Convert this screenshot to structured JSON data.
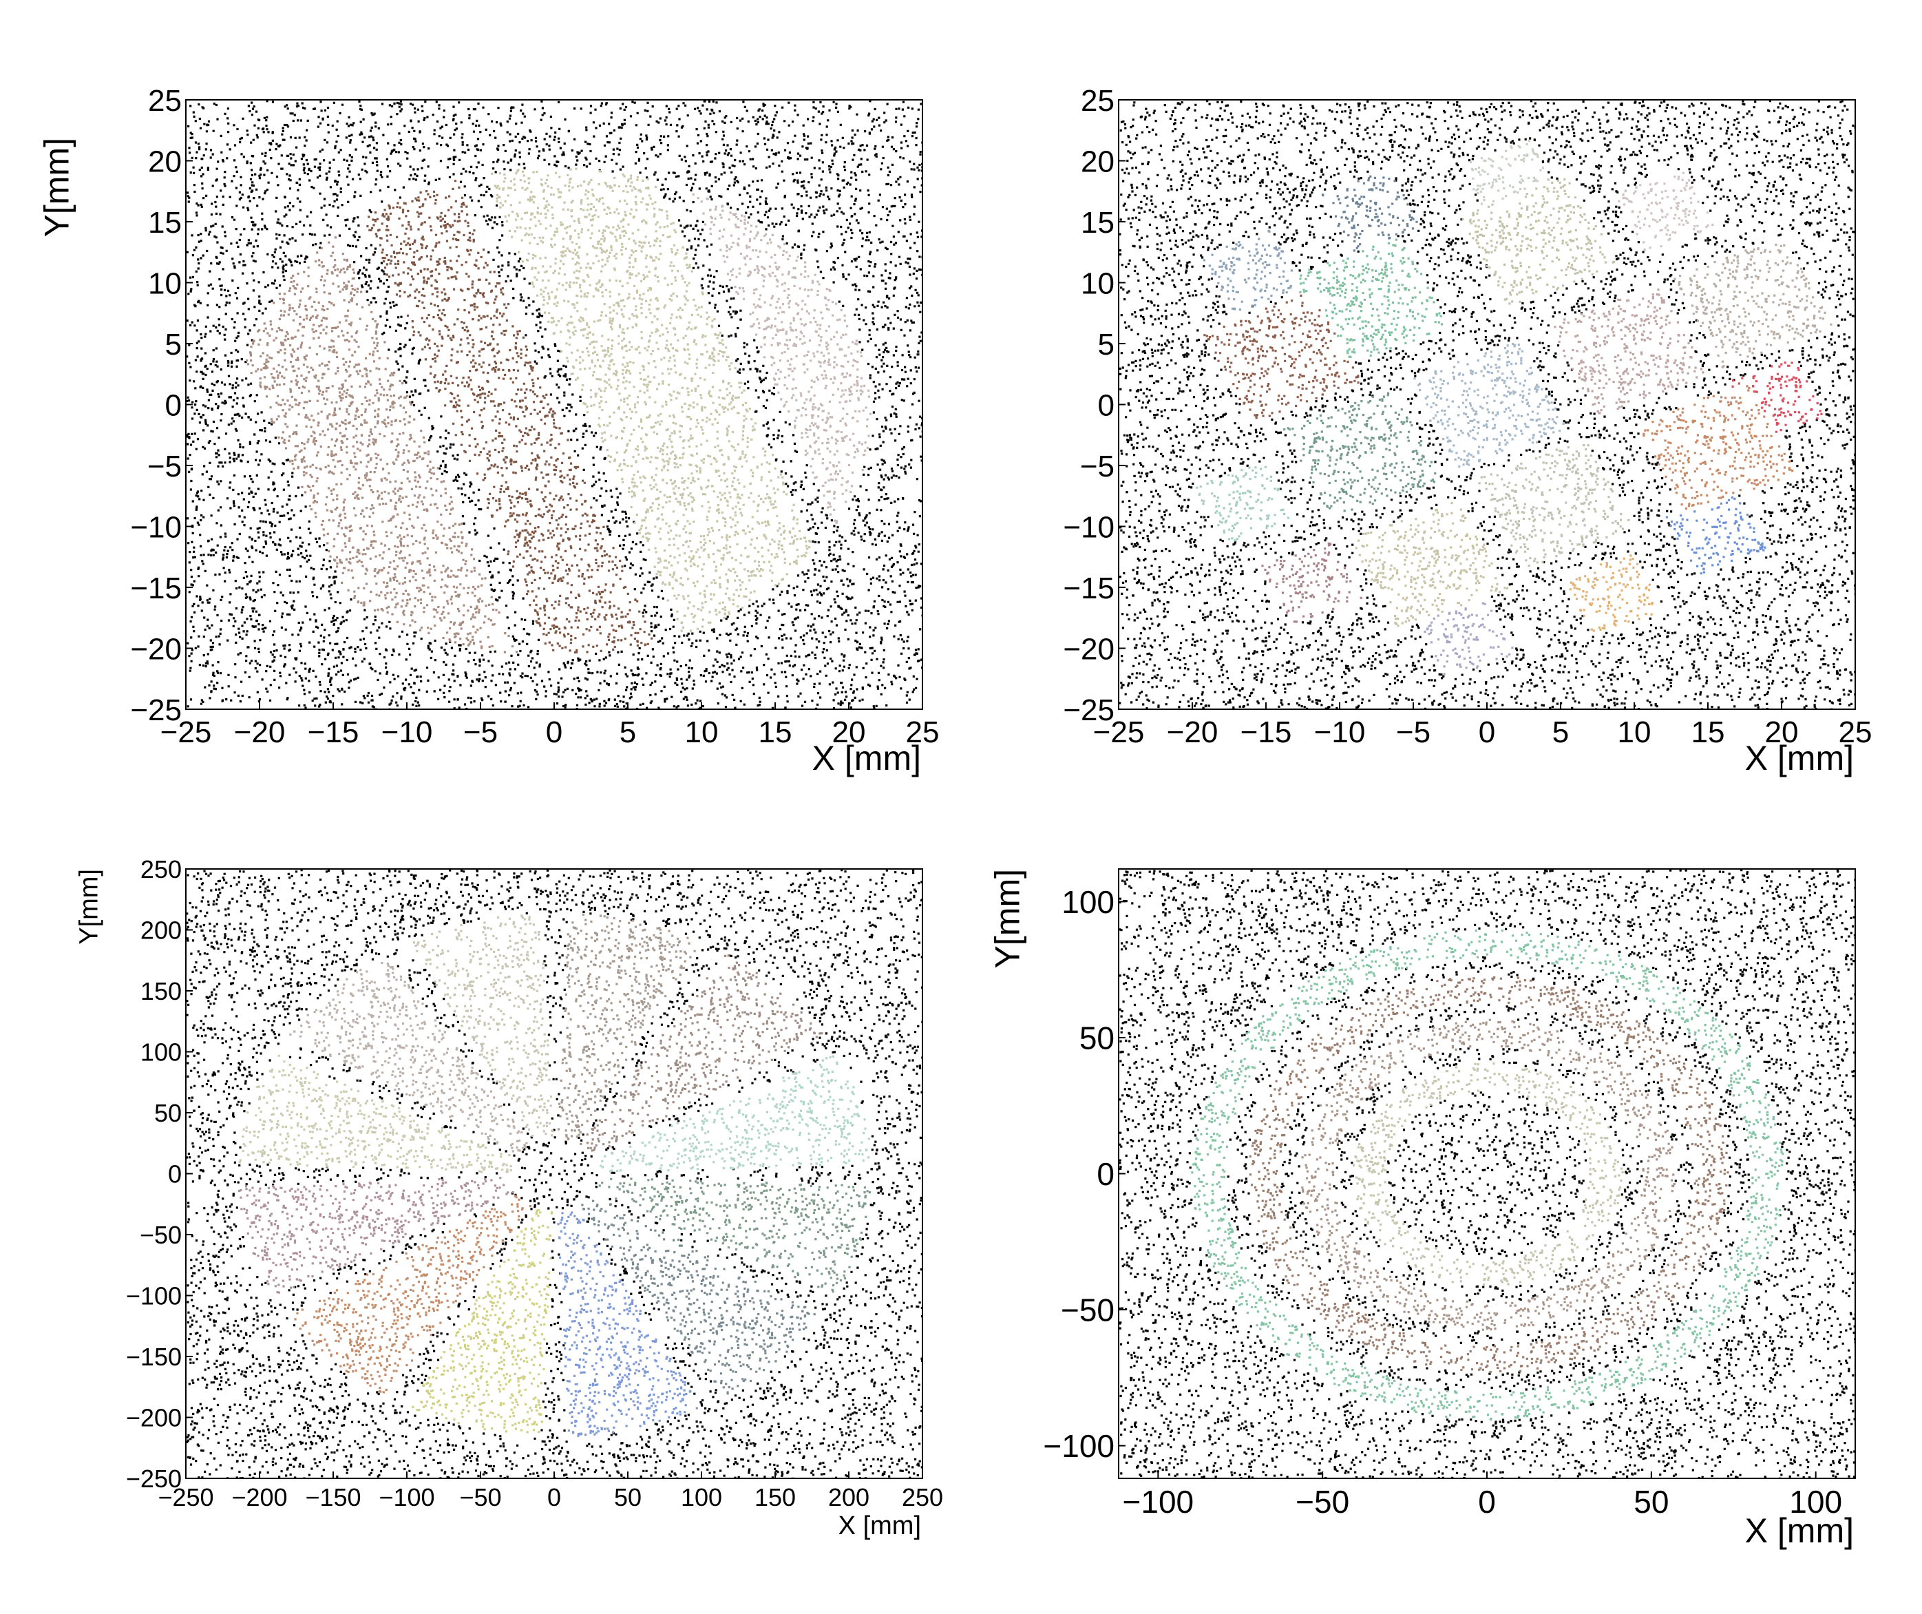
{
  "chart_data": [
    {
      "type": "scatter",
      "panel": "top-left",
      "title": "",
      "xlabel": "X [mm]",
      "ylabel": "Y[mm]",
      "xlim": [
        -25,
        25
      ],
      "ylim": [
        -25,
        25
      ],
      "xticks": [
        "−25",
        "−20",
        "−15",
        "−10",
        "−5",
        "0",
        "5",
        "10",
        "15",
        "20",
        "25"
      ],
      "yticks": [
        "−25",
        "−20",
        "−15",
        "−10",
        "−5",
        "0",
        "5",
        "10",
        "15",
        "20",
        "25"
      ],
      "xtick_values": [
        -25,
        -20,
        -15,
        -10,
        -5,
        0,
        5,
        10,
        15,
        20,
        25
      ],
      "ytick_values": [
        -25,
        -20,
        -15,
        -10,
        -5,
        0,
        5,
        10,
        15,
        20,
        25
      ],
      "background": "uniform black noise points",
      "background_color": "#000000",
      "clusters": [
        {
          "shape": "stripe",
          "center": [
            -14,
            -3
          ],
          "color": "#a88c80"
        },
        {
          "shape": "stripe",
          "center": [
            -4,
            0
          ],
          "color": "#7d5542"
        },
        {
          "shape": "stripe",
          "center": [
            7,
            4
          ],
          "color": "#c8c6a8"
        },
        {
          "shape": "stripe",
          "center": [
            18,
            8
          ],
          "color": "#c6b8b4"
        }
      ]
    },
    {
      "type": "scatter",
      "panel": "top-right",
      "title": "",
      "xlabel": "X [mm]",
      "ylabel": "",
      "xlim": [
        -25,
        25
      ],
      "ylim": [
        -25,
        25
      ],
      "xticks": [
        "−25",
        "−20",
        "−15",
        "−10",
        "−5",
        "0",
        "5",
        "10",
        "15",
        "20",
        "25"
      ],
      "yticks": [
        "−25",
        "−20",
        "−15",
        "−10",
        "−5",
        "0",
        "5",
        "10",
        "15",
        "20",
        "25"
      ],
      "xtick_values": [
        -25,
        -20,
        -15,
        -10,
        -5,
        0,
        5,
        10,
        15,
        20,
        25
      ],
      "ytick_values": [
        -25,
        -20,
        -15,
        -10,
        -5,
        0,
        5,
        10,
        15,
        20,
        25
      ],
      "background": "uniform black noise points",
      "background_color": "#000000",
      "clusters": [
        {
          "shape": "square",
          "center": [
            -14,
            4
          ],
          "color": "#8f5e4c"
        },
        {
          "shape": "square",
          "center": [
            -8,
            8.5
          ],
          "color": "#7fc0a0"
        },
        {
          "shape": "square",
          "center": [
            3.5,
            13.5
          ],
          "color": "#c3c2a8"
        },
        {
          "shape": "square",
          "center": [
            -8.5,
            -4
          ],
          "color": "#739a8c"
        },
        {
          "shape": "square",
          "center": [
            0,
            0
          ],
          "color": "#a6b8c9"
        },
        {
          "shape": "square",
          "center": [
            9.5,
            4.5
          ],
          "color": "#bea5a3"
        },
        {
          "shape": "square",
          "center": [
            -4,
            -13
          ],
          "color": "#c8c3a5"
        },
        {
          "shape": "square",
          "center": [
            4.5,
            -8
          ],
          "color": "#c0c1b0"
        },
        {
          "shape": "square",
          "center": [
            15.5,
            -3.5
          ],
          "color": "#c88a66"
        },
        {
          "shape": "square",
          "center": [
            18,
            8.5
          ],
          "color": "#b8ada4"
        },
        {
          "shape": "square",
          "center": [
            -16.5,
            -8
          ],
          "color": "#a5cec0"
        },
        {
          "shape": "square",
          "center": [
            8.5,
            -15.5
          ],
          "color": "#e2b071"
        },
        {
          "shape": "square",
          "center": [
            -8,
            16
          ],
          "color": "#6d8294"
        },
        {
          "shape": "square",
          "center": [
            19.5,
            0.5
          ],
          "color": "#d85060"
        },
        {
          "shape": "square",
          "center": [
            15.5,
            -10.5
          ],
          "color": "#6a8fd6"
        },
        {
          "shape": "square",
          "center": [
            -1.5,
            -19
          ],
          "color": "#a8a8c6"
        },
        {
          "shape": "square",
          "center": [
            -12,
            -14.5
          ],
          "color": "#a88088"
        },
        {
          "shape": "square",
          "center": [
            -16,
            11
          ],
          "color": "#8ea2b8"
        },
        {
          "shape": "square",
          "center": [
            1.5,
            18.5
          ],
          "color": "#c8d0c6"
        },
        {
          "shape": "square",
          "center": [
            12,
            16
          ],
          "color": "#d0c4c4"
        }
      ]
    },
    {
      "type": "scatter",
      "panel": "bottom-left",
      "title": "",
      "xlabel": "X [mm]",
      "ylabel": "Y[mm]",
      "xlim": [
        -250,
        250
      ],
      "ylim": [
        -250,
        250
      ],
      "xticks": [
        "−250",
        "−200",
        "−150",
        "−100",
        "−50",
        "0",
        "50",
        "100",
        "150",
        "200",
        "250"
      ],
      "yticks": [
        "−250",
        "−200",
        "−150",
        "−100",
        "−50",
        "0",
        "50",
        "100",
        "150",
        "200",
        "250"
      ],
      "xtick_values": [
        -250,
        -200,
        -150,
        -100,
        -50,
        0,
        50,
        100,
        150,
        200,
        250
      ],
      "ytick_values": [
        -250,
        -200,
        -150,
        -100,
        -50,
        0,
        50,
        100,
        150,
        200,
        250
      ],
      "background": "uniform black noise points",
      "background_color": "#000000",
      "clusters": [
        {
          "shape": "wedge",
          "angles_deg": [
            90,
            120
          ],
          "color": "#c8c6b2"
        },
        {
          "shape": "wedge",
          "angles_deg": [
            60,
            90
          ],
          "color": "#a69a90"
        },
        {
          "shape": "wedge",
          "angles_deg": [
            30,
            60
          ],
          "color": "#9f8c84"
        },
        {
          "shape": "wedge",
          "angles_deg": [
            0,
            30
          ],
          "color": "#b1d6c8"
        },
        {
          "shape": "wedge",
          "angles_deg": [
            -30,
            0
          ],
          "color": "#7e9a8a"
        },
        {
          "shape": "wedge",
          "angles_deg": [
            -60,
            -30
          ],
          "color": "#788a90"
        },
        {
          "shape": "wedge",
          "angles_deg": [
            -90,
            -60
          ],
          "color": "#7f9ad8"
        },
        {
          "shape": "wedge",
          "angles_deg": [
            -120,
            -90
          ],
          "color": "#d0d083"
        },
        {
          "shape": "wedge",
          "angles_deg": [
            -150,
            -120
          ],
          "color": "#c58c6a"
        },
        {
          "shape": "wedge",
          "angles_deg": [
            -180,
            -150
          ],
          "color": "#ae919d"
        },
        {
          "shape": "wedge",
          "angles_deg": [
            150,
            180
          ],
          "color": "#cbcbaf"
        },
        {
          "shape": "wedge",
          "angles_deg": [
            120,
            150
          ],
          "color": "#bcb1aa"
        }
      ]
    },
    {
      "type": "scatter",
      "panel": "bottom-right",
      "title": "",
      "xlabel": "X [mm]",
      "ylabel": "Y[mm]",
      "xlim": [
        -112,
        112
      ],
      "ylim": [
        -112,
        112
      ],
      "xticks": [
        "−100",
        "−50",
        "0",
        "50",
        "100"
      ],
      "yticks": [
        "−100",
        "−50",
        "0",
        "50",
        "100"
      ],
      "xtick_values": [
        -100,
        -50,
        0,
        50,
        100
      ],
      "ytick_values": [
        -100,
        -50,
        0,
        50,
        100
      ],
      "background": "uniform black noise points",
      "background_color": "#000000",
      "clusters": [
        {
          "shape": "ring",
          "radius_mm": [
            31,
            41
          ],
          "color": "#c5c4ac"
        },
        {
          "shape": "ring",
          "radius_mm": [
            47,
            57
          ],
          "color": "#a89488"
        },
        {
          "shape": "ring",
          "radius_mm": [
            63,
            73
          ],
          "color": "#9a7c6c"
        },
        {
          "shape": "ring",
          "radius_mm": [
            80,
            90
          ],
          "color": "#84c4a4"
        }
      ]
    }
  ]
}
